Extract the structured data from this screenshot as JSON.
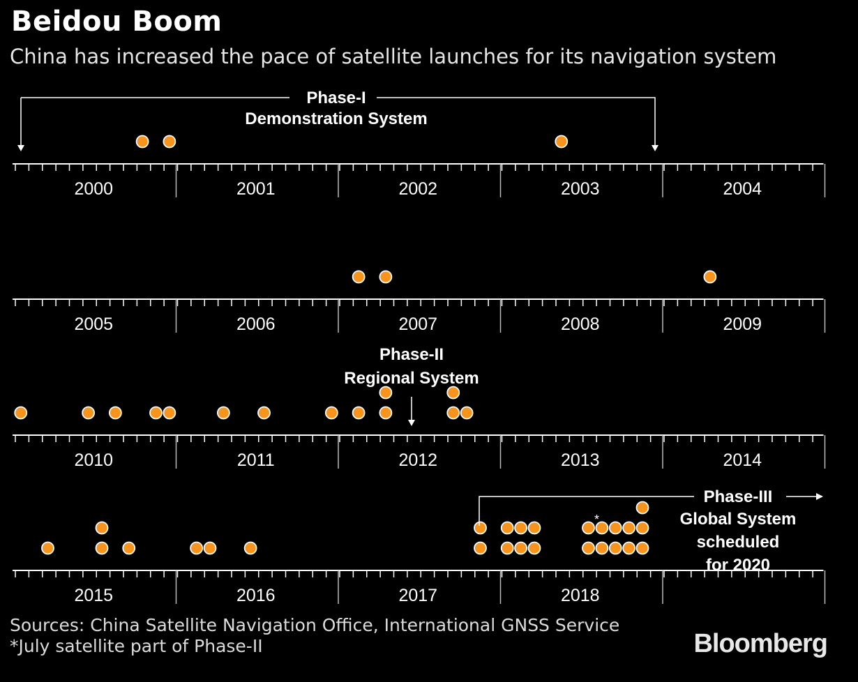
{
  "title": "Beidou Boom",
  "subtitle": "China has increased the pace of satellite launches for its navigation system",
  "chart_data": {
    "type": "scatter",
    "description_unit": "satellite launches",
    "rows": [
      {
        "years": [
          "2000",
          "2001",
          "2002",
          "2003",
          "2004"
        ],
        "launches": [
          {
            "year": 2000,
            "month": 10,
            "count": 1
          },
          {
            "year": 2000,
            "month": 12,
            "count": 1
          },
          {
            "year": 2003,
            "month": 5,
            "count": 1
          }
        ]
      },
      {
        "years": [
          "2005",
          "2006",
          "2007",
          "2008",
          "2009"
        ],
        "launches": [
          {
            "year": 2007,
            "month": 2,
            "count": 1
          },
          {
            "year": 2007,
            "month": 4,
            "count": 1
          },
          {
            "year": 2009,
            "month": 4,
            "count": 1
          }
        ]
      },
      {
        "years": [
          "2010",
          "2011",
          "2012",
          "2013",
          "2014"
        ],
        "launches": [
          {
            "year": 2010,
            "month": 1,
            "count": 1
          },
          {
            "year": 2010,
            "month": 6,
            "count": 1
          },
          {
            "year": 2010,
            "month": 8,
            "count": 1
          },
          {
            "year": 2010,
            "month": 11,
            "count": 1
          },
          {
            "year": 2010,
            "month": 12,
            "count": 1
          },
          {
            "year": 2011,
            "month": 4,
            "count": 1
          },
          {
            "year": 2011,
            "month": 7,
            "count": 1
          },
          {
            "year": 2011,
            "month": 12,
            "count": 1
          },
          {
            "year": 2012,
            "month": 2,
            "count": 1
          },
          {
            "year": 2012,
            "month": 4,
            "count": 2
          },
          {
            "year": 2012,
            "month": 9,
            "count": 2
          },
          {
            "year": 2012,
            "month": 10,
            "count": 1
          }
        ]
      },
      {
        "years": [
          "2015",
          "2016",
          "2017",
          "2018",
          ""
        ],
        "launches": [
          {
            "year": 2015,
            "month": 3,
            "count": 1
          },
          {
            "year": 2015,
            "month": 7,
            "count": 2
          },
          {
            "year": 2015,
            "month": 9,
            "count": 1
          },
          {
            "year": 2016,
            "month": 2,
            "count": 1
          },
          {
            "year": 2016,
            "month": 3,
            "count": 1
          },
          {
            "year": 2016,
            "month": 6,
            "count": 1
          },
          {
            "year": 2017,
            "month": 11,
            "count": 2
          },
          {
            "year": 2018,
            "month": 1,
            "count": 2
          },
          {
            "year": 2018,
            "month": 2,
            "count": 2
          },
          {
            "year": 2018,
            "month": 3,
            "count": 2
          },
          {
            "year": 2018,
            "month": 7,
            "count": 2,
            "asterisk": true
          },
          {
            "year": 2018,
            "month": 8,
            "count": 2
          },
          {
            "year": 2018,
            "month": 9,
            "count": 2
          },
          {
            "year": 2018,
            "month": 10,
            "count": 2
          },
          {
            "year": 2018,
            "month": 11,
            "count": 3
          }
        ]
      }
    ],
    "annotations": {
      "phase1": [
        "Phase-I",
        "Demonstration System"
      ],
      "phase2": [
        "Phase-II",
        "Regional System"
      ],
      "phase3": [
        "Phase-III",
        "Global System",
        "scheduled",
        "for 2020"
      ],
      "asterisk": "*"
    },
    "colors": {
      "dot": "#f7941d",
      "dot_stroke": "#ffffff",
      "axis": "#ffffff",
      "background": "#000000"
    }
  },
  "footer": {
    "sources": "Sources: China Satellite Navigation Office, International GNSS Service",
    "note": "*July satellite part of Phase-II"
  },
  "brand": "Bloomberg"
}
